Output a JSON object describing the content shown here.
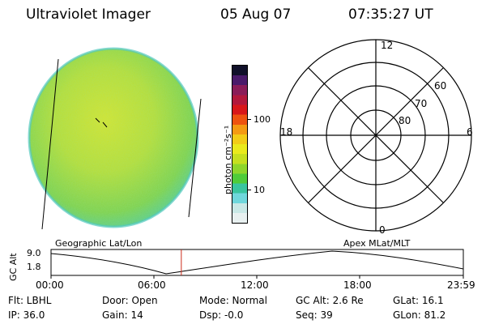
{
  "header": {
    "instrument": "Ultraviolet Imager",
    "date": "05 Aug 07",
    "time": "07:35:27 UT"
  },
  "colorbar": {
    "unit_label": "photon cm⁻²s⁻¹",
    "ticks": [
      "100",
      "10"
    ],
    "colors": [
      "#e8f0f0",
      "#c9e8e6",
      "#6fd7dc",
      "#39c59f",
      "#4fcc3a",
      "#8ed62b",
      "#c6e01f",
      "#eaea1c",
      "#f2cc17",
      "#f49a13",
      "#ee5310",
      "#d8171a",
      "#b2183c",
      "#8a1c58",
      "#4a1a6a",
      "#10102a"
    ]
  },
  "polar": {
    "mlt_labels": {
      "top": "12",
      "bottom": "0",
      "left": "18",
      "right": "6"
    },
    "lat_labels": [
      "60",
      "70",
      "80"
    ]
  },
  "timeline": {
    "left_label": "Geographic Lat/Lon",
    "right_label": "Apex  MLat/MLT",
    "axis_title": "GC Alt",
    "y_top": "9.0",
    "y_bottom": "1.8",
    "x_ticks": [
      "00:00",
      "06:00",
      "12:00",
      "18:00",
      "23:59"
    ],
    "current_time_fraction": 0.316
  },
  "params": {
    "filter": "Flt: LBHL",
    "ip": "IP: 36.0",
    "door": "Door: Open",
    "gain": "Gain: 14",
    "mode": "Mode: Normal",
    "dsp": "Dsp:   -0.0",
    "gc_alt": "GC Alt: 2.6 Re",
    "seq": "Seq: 39",
    "glat": "GLat:  16.1",
    "glon": "GLon:  81.2"
  }
}
